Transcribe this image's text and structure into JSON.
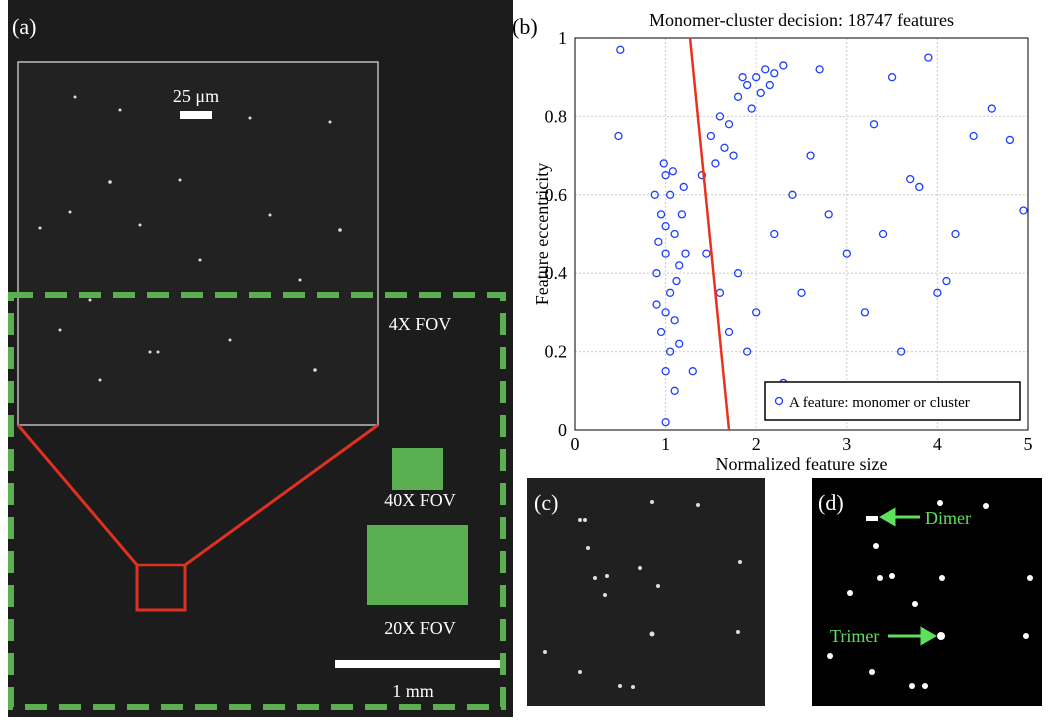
{
  "panels": {
    "a": {
      "label": "(a)",
      "inset_scale": "25 μm",
      "fov_4x": "4X FOV",
      "fov_40x": "40X FOV",
      "fov_20x": "20X FOV",
      "scale": "1 mm"
    },
    "c": {
      "label": "(c)"
    },
    "d": {
      "label": "(d)",
      "dimer": "Dimer",
      "trimer": "Trimer"
    }
  },
  "chart_data": {
    "type": "scatter",
    "title": "Monomer-cluster decision: 18747 features",
    "x_label": "Normalized feature size",
    "y_label": "Feature eccentricity",
    "xlim": [
      0,
      5
    ],
    "ylim": [
      0,
      1
    ],
    "xticks": [
      0,
      1,
      2,
      3,
      4,
      5
    ],
    "yticks": [
      0,
      0.2,
      0.4,
      0.6,
      0.8,
      1
    ],
    "grid": true,
    "legend": "lower right",
    "series": [
      {
        "name": "A feature: monomer or cluster",
        "color": "#1f3fff",
        "x": [
          1.0,
          1.05,
          0.95,
          1.1,
          1.0,
          1.15,
          0.9,
          1.05,
          1.0,
          1.1,
          0.95,
          1.05,
          1.0,
          1.2,
          0.88,
          1.12,
          1.0,
          0.92,
          1.18,
          1.08,
          0.98,
          1.22,
          0.9,
          1.15,
          1.0,
          1.1,
          1.5,
          1.6,
          1.7,
          1.8,
          1.9,
          2.0,
          2.1,
          2.2,
          1.95,
          1.75,
          1.65,
          2.05,
          1.85,
          2.15,
          1.55,
          2.3,
          1.4,
          0.5,
          0.48,
          1.45,
          1.6,
          1.7,
          1.8,
          2.0,
          2.2,
          2.4,
          2.5,
          2.6,
          2.8,
          3.0,
          3.2,
          3.4,
          3.6,
          3.8,
          4.0,
          4.2,
          4.4,
          4.6,
          4.8,
          4.95,
          3.5,
          3.9,
          2.7,
          3.3,
          1.3,
          1.9,
          2.3,
          4.1,
          3.7
        ],
        "y": [
          0.65,
          0.6,
          0.55,
          0.5,
          0.45,
          0.42,
          0.4,
          0.35,
          0.3,
          0.28,
          0.25,
          0.2,
          0.15,
          0.62,
          0.6,
          0.38,
          0.52,
          0.48,
          0.55,
          0.66,
          0.68,
          0.45,
          0.32,
          0.22,
          0.02,
          0.1,
          0.75,
          0.8,
          0.78,
          0.85,
          0.88,
          0.9,
          0.92,
          0.91,
          0.82,
          0.7,
          0.72,
          0.86,
          0.9,
          0.88,
          0.68,
          0.93,
          0.65,
          0.97,
          0.75,
          0.45,
          0.35,
          0.25,
          0.4,
          0.3,
          0.5,
          0.6,
          0.35,
          0.7,
          0.55,
          0.45,
          0.3,
          0.5,
          0.2,
          0.62,
          0.35,
          0.5,
          0.75,
          0.82,
          0.74,
          0.56,
          0.9,
          0.95,
          0.92,
          0.78,
          0.15,
          0.2,
          0.12,
          0.38,
          0.64
        ]
      }
    ],
    "decision_line": {
      "color": "#e8321e",
      "x": [
        1.27,
        1.7
      ],
      "y": [
        1,
        0
      ]
    }
  }
}
